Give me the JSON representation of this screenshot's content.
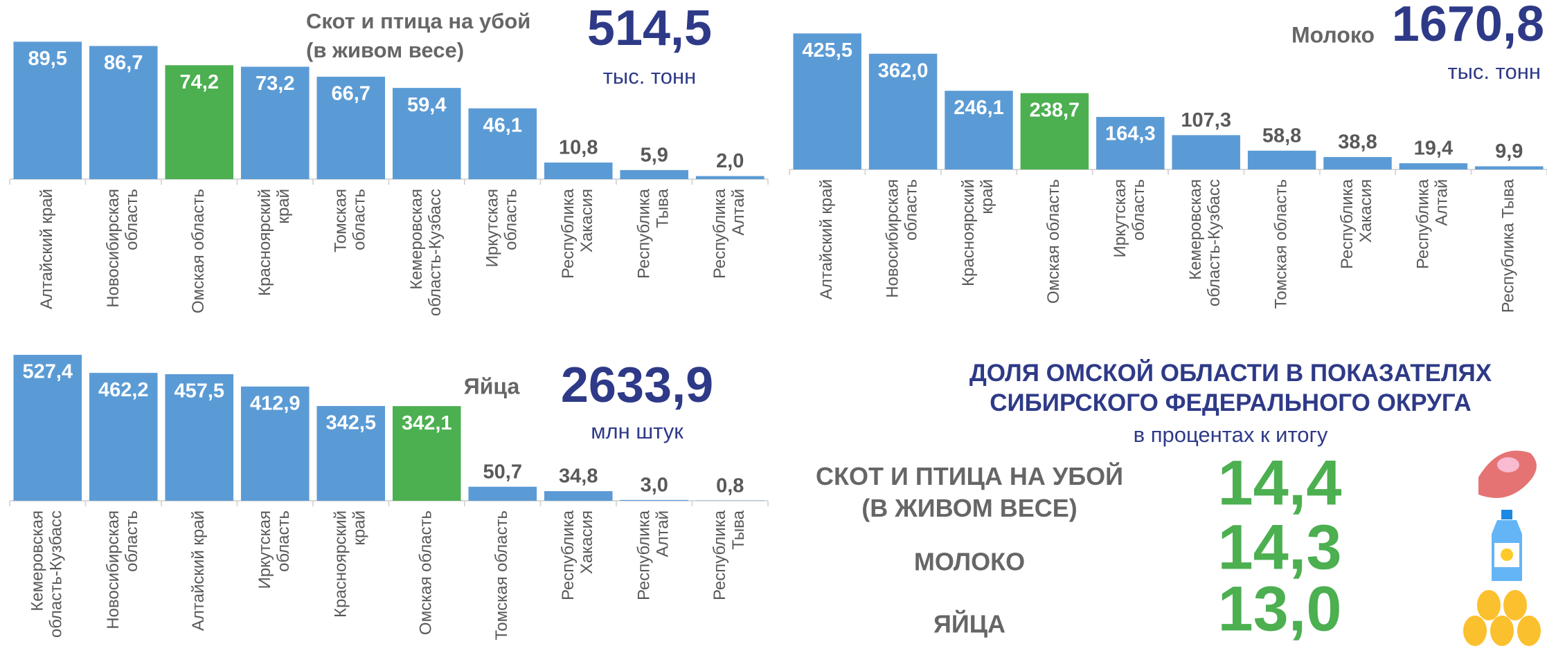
{
  "chart_data": [
    {
      "type": "bar",
      "title": "Скот и птица на убой\n(в живом весе)",
      "total": "514,5",
      "unit": "тыс. тонн",
      "categories": [
        "Алтайский край",
        "Новосибирская\nобласть",
        "Омская область",
        "Красноярский\nкрай",
        "Томская\nобласть",
        "Кемеровская\nобласть-Кузбасс",
        "Иркутская\nобласть",
        "Республика\nХакасия",
        "Республика\nТыва",
        "Республика\nАлтай"
      ],
      "values": [
        89.5,
        86.7,
        74.2,
        73.2,
        66.7,
        59.4,
        46.1,
        10.8,
        5.9,
        2.0
      ],
      "value_labels": [
        "89,5",
        "86,7",
        "74,2",
        "73,2",
        "66,7",
        "59,4",
        "46,1",
        "10,8",
        "5,9",
        "2,0"
      ],
      "colors": [
        "#5b9bd5",
        "#5b9bd5",
        "#4caf50",
        "#5b9bd5",
        "#5b9bd5",
        "#5b9bd5",
        "#5b9bd5",
        "#5b9bd5",
        "#5b9bd5",
        "#5b9bd5"
      ],
      "ylim": [
        0,
        100
      ]
    },
    {
      "type": "bar",
      "title": "Молоко",
      "total": "1670,8",
      "unit": "тыс. тонн",
      "categories": [
        "Алтайский край",
        "Новосибирская\nобласть",
        "Красноярский\nкрай",
        "Омская область",
        "Иркутская\nобласть",
        "Кемеровская\nобласть-Кузбасс",
        "Томская область",
        "Республика\nХакасия",
        "Республика\nАлтай",
        "Республика Тыва"
      ],
      "values": [
        425.5,
        362.0,
        246.1,
        238.7,
        164.3,
        107.3,
        58.8,
        38.8,
        19.4,
        9.9
      ],
      "value_labels": [
        "425,5",
        "362,0",
        "246,1",
        "238,7",
        "164,3",
        "107,3",
        "58,8",
        "38,8",
        "19,4",
        "9,9"
      ],
      "colors": [
        "#5b9bd5",
        "#5b9bd5",
        "#5b9bd5",
        "#4caf50",
        "#5b9bd5",
        "#5b9bd5",
        "#5b9bd5",
        "#5b9bd5",
        "#5b9bd5",
        "#5b9bd5"
      ],
      "ylim": [
        0,
        450
      ]
    },
    {
      "type": "bar",
      "title": "Яйца",
      "total": "2633,9",
      "unit": "млн штук",
      "categories": [
        "Кемеровская\nобласть-Кузбасс",
        "Новосибирская\nобласть",
        "Алтайский край",
        "Иркутская\nобласть",
        "Красноярский\nкрай",
        "Омская область",
        "Томская область",
        "Республика\nХакасия",
        "Республика\nАлтай",
        "Республика\nТыва"
      ],
      "values": [
        527.4,
        462.2,
        457.5,
        412.9,
        342.5,
        342.1,
        50.7,
        34.8,
        3.0,
        0.8
      ],
      "value_labels": [
        "527,4",
        "462,2",
        "457,5",
        "412,9",
        "342,5",
        "342,1",
        "50,7",
        "34,8",
        "3,0",
        "0,8"
      ],
      "colors": [
        "#5b9bd5",
        "#5b9bd5",
        "#5b9bd5",
        "#5b9bd5",
        "#5b9bd5",
        "#4caf50",
        "#5b9bd5",
        "#5b9bd5",
        "#5b9bd5",
        "#5b9bd5"
      ],
      "ylim": [
        0,
        550
      ]
    }
  ],
  "share": {
    "title": "ДОЛЯ ОМСКОЙ ОБЛАСТИ В ПОКАЗАТЕЛЯХ\nСИБИРСКОГО ФЕДЕРАЛЬНОГО ОКРУГА",
    "subtitle": "в процентах к итогу",
    "items": [
      {
        "label": "СКОТ И ПТИЦА НА УБОЙ\n(В ЖИВОМ ВЕСЕ)",
        "value": "14,4"
      },
      {
        "label": "МОЛОКО",
        "value": "14,3"
      },
      {
        "label": "ЯЙЦА",
        "value": "13,0"
      }
    ]
  }
}
